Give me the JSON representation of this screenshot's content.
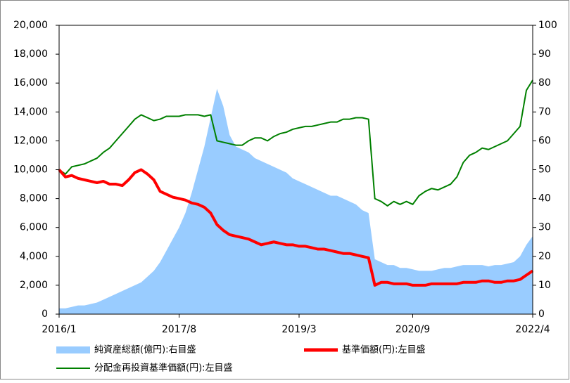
{
  "chart_data": {
    "type": "area_line_dual",
    "categories": [
      "2016/1",
      null,
      null,
      null,
      null,
      null,
      null,
      null,
      null,
      null,
      null,
      null,
      null,
      null,
      null,
      null,
      null,
      null,
      null,
      "2017/8",
      null,
      null,
      null,
      null,
      null,
      null,
      null,
      null,
      null,
      null,
      null,
      null,
      null,
      null,
      null,
      null,
      null,
      null,
      "2019/3",
      null,
      null,
      null,
      null,
      null,
      null,
      null,
      null,
      null,
      null,
      null,
      null,
      null,
      null,
      null,
      null,
      null,
      "2020/9",
      null,
      null,
      null,
      null,
      null,
      null,
      null,
      null,
      null,
      null,
      null,
      null,
      null,
      null,
      null,
      null,
      null,
      null,
      "2022/4"
    ],
    "ylim": [
      0,
      20000
    ],
    "yticks": [
      0,
      {
        "value": 2000,
        "label": "2,000"
      },
      {
        "value": 4000,
        "label": "4,000"
      },
      {
        "value": 6000,
        "label": "6,000"
      },
      {
        "value": 8000,
        "label": "8,000"
      },
      {
        "value": 10000,
        "label": "10,000"
      },
      {
        "value": 12000,
        "label": "12,000"
      },
      {
        "value": 14000,
        "label": "14,000"
      },
      {
        "value": 16000,
        "label": "16,000"
      },
      {
        "value": 18000,
        "label": "18,000"
      },
      {
        "value": 20000,
        "label": "20,000"
      }
    ],
    "y2lim": [
      0,
      100
    ],
    "y2ticks": [
      0,
      10,
      20,
      30,
      40,
      50,
      60,
      70,
      80,
      90,
      100
    ],
    "series": [
      {
        "name": "純資産総額(億円):右目盛",
        "kind": "area",
        "axis": "y2",
        "color": "#99ccff",
        "values": [
          2,
          2,
          2.5,
          3,
          3,
          3.5,
          4,
          5,
          6,
          7,
          8,
          9,
          10,
          11,
          13,
          15,
          18,
          22,
          26,
          30,
          35,
          42,
          50,
          58,
          68,
          78,
          72,
          62,
          58,
          57,
          56,
          54,
          53,
          52,
          51,
          50,
          49,
          47,
          46,
          45,
          44,
          43,
          42,
          41,
          41,
          40,
          39,
          38,
          36,
          35,
          19,
          18,
          17,
          17,
          16,
          16,
          15.5,
          15,
          15,
          15,
          15.5,
          16,
          16,
          16.5,
          17,
          17,
          17,
          17,
          16.5,
          17,
          17,
          17.5,
          18,
          20,
          24,
          27
        ]
      },
      {
        "name": "基準価額(円):左目盛",
        "kind": "line",
        "axis": "y",
        "color": "#ff0000",
        "values": [
          10000,
          9500,
          9600,
          9400,
          9300,
          9200,
          9100,
          9200,
          9000,
          9000,
          8900,
          9300,
          9800,
          10000,
          9700,
          9300,
          8500,
          8300,
          8100,
          8000,
          7900,
          7700,
          7600,
          7400,
          7000,
          6200,
          5800,
          5500,
          5400,
          5300,
          5200,
          5000,
          4800,
          4900,
          5000,
          4900,
          4800,
          4800,
          4700,
          4700,
          4600,
          4500,
          4500,
          4400,
          4300,
          4200,
          4200,
          4100,
          4000,
          3900,
          2000,
          2200,
          2200,
          2100,
          2100,
          2100,
          2000,
          2000,
          2000,
          2100,
          2100,
          2100,
          2100,
          2100,
          2200,
          2200,
          2200,
          2300,
          2300,
          2200,
          2200,
          2300,
          2300,
          2400,
          2700,
          3000
        ]
      },
      {
        "name": "分配金再投資基準価額(円):左目盛",
        "kind": "line",
        "axis": "y",
        "color": "#008000",
        "values": [
          10000,
          9700,
          10200,
          10300,
          10400,
          10600,
          10800,
          11200,
          11500,
          12000,
          12500,
          13000,
          13500,
          13800,
          13600,
          13400,
          13500,
          13700,
          13700,
          13700,
          13800,
          13800,
          13800,
          13700,
          13800,
          12000,
          11900,
          11800,
          11700,
          11700,
          12000,
          12200,
          12200,
          12000,
          12300,
          12500,
          12600,
          12800,
          12900,
          13000,
          13000,
          13100,
          13200,
          13300,
          13300,
          13500,
          13500,
          13600,
          13600,
          13500,
          8000,
          7800,
          7500,
          7800,
          7600,
          7800,
          7600,
          8200,
          8500,
          8700,
          8600,
          8800,
          9000,
          9500,
          10500,
          11000,
          11200,
          11500,
          11400,
          11600,
          11800,
          12000,
          12500,
          13000,
          15500,
          16200
        ]
      }
    ]
  }
}
